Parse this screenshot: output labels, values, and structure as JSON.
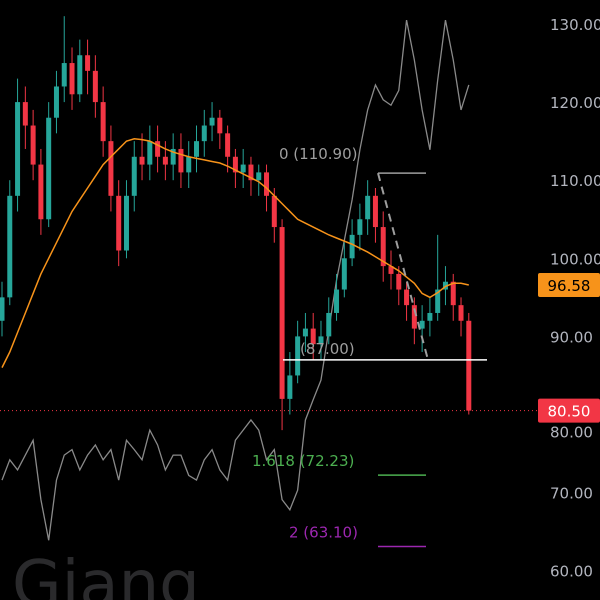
{
  "chart_data": {
    "type": "candlestick",
    "y_axis": {
      "side": "right",
      "range": [
        58,
        132
      ],
      "ticks": [
        130,
        120,
        110,
        100,
        90,
        80,
        70,
        60
      ],
      "tick_labels": [
        "130.00",
        "120.00",
        "110.00",
        "100.00",
        "90.00",
        "80.00",
        "70.00",
        "60.00"
      ]
    },
    "grid": false,
    "colors": {
      "up": "#26a69a",
      "down": "#f23645",
      "ma": "#f7931a",
      "overlay": "#8a8a8a",
      "background": "#000000"
    },
    "candles": [
      [
        92,
        97,
        90,
        95
      ],
      [
        95,
        110,
        94,
        108
      ],
      [
        108,
        123,
        106,
        120
      ],
      [
        120,
        122,
        114,
        117
      ],
      [
        117,
        119,
        110,
        112
      ],
      [
        112,
        114,
        103,
        105
      ],
      [
        105,
        120,
        104,
        118
      ],
      [
        118,
        124,
        116,
        122
      ],
      [
        122,
        131,
        120,
        125
      ],
      [
        125,
        127,
        119,
        121
      ],
      [
        121,
        128,
        120,
        126
      ],
      [
        126,
        128,
        121,
        124
      ],
      [
        124,
        126,
        118,
        120
      ],
      [
        120,
        122,
        113,
        115
      ],
      [
        115,
        117,
        106,
        108
      ],
      [
        108,
        110,
        99,
        101
      ],
      [
        101,
        110,
        100,
        108
      ],
      [
        108,
        115,
        106,
        113
      ],
      [
        113,
        116,
        110,
        112
      ],
      [
        112,
        117,
        110,
        115
      ],
      [
        115,
        117,
        111,
        113
      ],
      [
        113,
        115,
        110,
        112
      ],
      [
        112,
        116,
        110,
        114
      ],
      [
        114,
        116,
        109,
        111
      ],
      [
        111,
        115,
        109,
        113
      ],
      [
        113,
        117,
        111,
        115
      ],
      [
        115,
        119,
        113,
        117
      ],
      [
        117,
        120,
        115,
        118
      ],
      [
        118,
        119,
        114,
        116
      ],
      [
        116,
        117,
        111,
        113
      ],
      [
        113,
        114,
        109,
        111
      ],
      [
        111,
        114,
        109,
        112
      ],
      [
        112,
        113,
        108,
        110
      ],
      [
        110,
        112,
        108,
        111
      ],
      [
        111,
        112,
        106,
        108
      ],
      [
        108,
        109,
        102,
        104
      ],
      [
        104,
        105,
        78,
        82
      ],
      [
        82,
        88,
        80,
        85
      ],
      [
        85,
        92,
        84,
        90
      ],
      [
        90,
        93,
        88,
        91
      ],
      [
        91,
        93,
        87,
        89
      ],
      [
        89,
        92,
        87,
        90
      ],
      [
        90,
        95,
        89,
        93
      ],
      [
        93,
        98,
        92,
        96
      ],
      [
        96,
        102,
        95,
        100
      ],
      [
        100,
        105,
        99,
        103
      ],
      [
        103,
        107,
        101,
        105
      ],
      [
        105,
        110,
        103,
        108
      ],
      [
        108,
        109,
        102,
        104
      ],
      [
        104,
        106,
        97,
        99
      ],
      [
        99,
        101,
        96,
        98
      ],
      [
        98,
        99,
        94,
        96
      ],
      [
        96,
        97,
        92,
        94
      ],
      [
        94,
        95,
        89,
        91
      ],
      [
        91,
        94,
        88,
        92
      ],
      [
        92,
        95,
        90,
        93
      ],
      [
        93,
        103,
        92,
        96
      ],
      [
        96,
        99,
        94,
        97
      ],
      [
        97,
        98,
        92,
        94
      ],
      [
        94,
        95,
        90,
        92
      ],
      [
        92,
        93,
        80,
        80.5
      ]
    ],
    "moving_average": [
      86,
      88,
      90.5,
      93,
      95.5,
      98,
      100,
      102,
      104,
      106,
      107.5,
      109,
      110.5,
      112,
      113,
      114,
      115,
      115.3,
      115.2,
      115,
      114.5,
      114,
      113.6,
      113.3,
      113,
      112.8,
      112.6,
      112.4,
      112.2,
      111.8,
      111.3,
      110.8,
      110.3,
      109.8,
      109,
      108,
      107,
      106,
      105,
      104.5,
      104,
      103.5,
      103,
      102.6,
      102.2,
      101.8,
      101.3,
      100.8,
      100.2,
      99.6,
      99,
      98.4,
      97.6,
      96.8,
      95.5,
      95,
      95.6,
      96.4,
      96.8,
      96.8,
      96.58
    ],
    "overlay_series": [
      71.6,
      74.2,
      72.9,
      74.8,
      76.7,
      69.1,
      63.9,
      71.6,
      74.8,
      75.5,
      72.9,
      74.8,
      76.1,
      74.2,
      75.5,
      71.6,
      76.7,
      75.5,
      74.2,
      78,
      76.1,
      72.9,
      74.8,
      74.8,
      72.2,
      71.6,
      74.2,
      75.5,
      72.9,
      71.6,
      76.7,
      78,
      79.3,
      78,
      74.2,
      75.5,
      69.1,
      67.8,
      70.3,
      79.3,
      81.9,
      84.4,
      90.8,
      97.2,
      102.3,
      107.5,
      113.9,
      119,
      122.2,
      120.3,
      119.6,
      121.5,
      130.5,
      125.4,
      119,
      113.9,
      122.8,
      130.5,
      125.4,
      119,
      122.2
    ],
    "fibonacci": [
      {
        "label": "0 (110.90)",
        "value": 110.9,
        "color": "#9e9e9e"
      },
      {
        "label": "(87.00)",
        "value": 87.0,
        "color": "#9e9e9e"
      },
      {
        "label": "1.618 (72.23)",
        "value": 72.23,
        "color": "#4caf50"
      },
      {
        "label": "2 (63.10)",
        "value": 63.1,
        "color": "#9c27b0"
      }
    ],
    "horizontal_line": 87.0,
    "price_labels": [
      {
        "text": "96.58",
        "value": 96.58,
        "color": "#f7931a"
      },
      {
        "text": "80.50",
        "value": 80.5,
        "color": "#f23645"
      }
    ]
  },
  "watermark": "Giang"
}
